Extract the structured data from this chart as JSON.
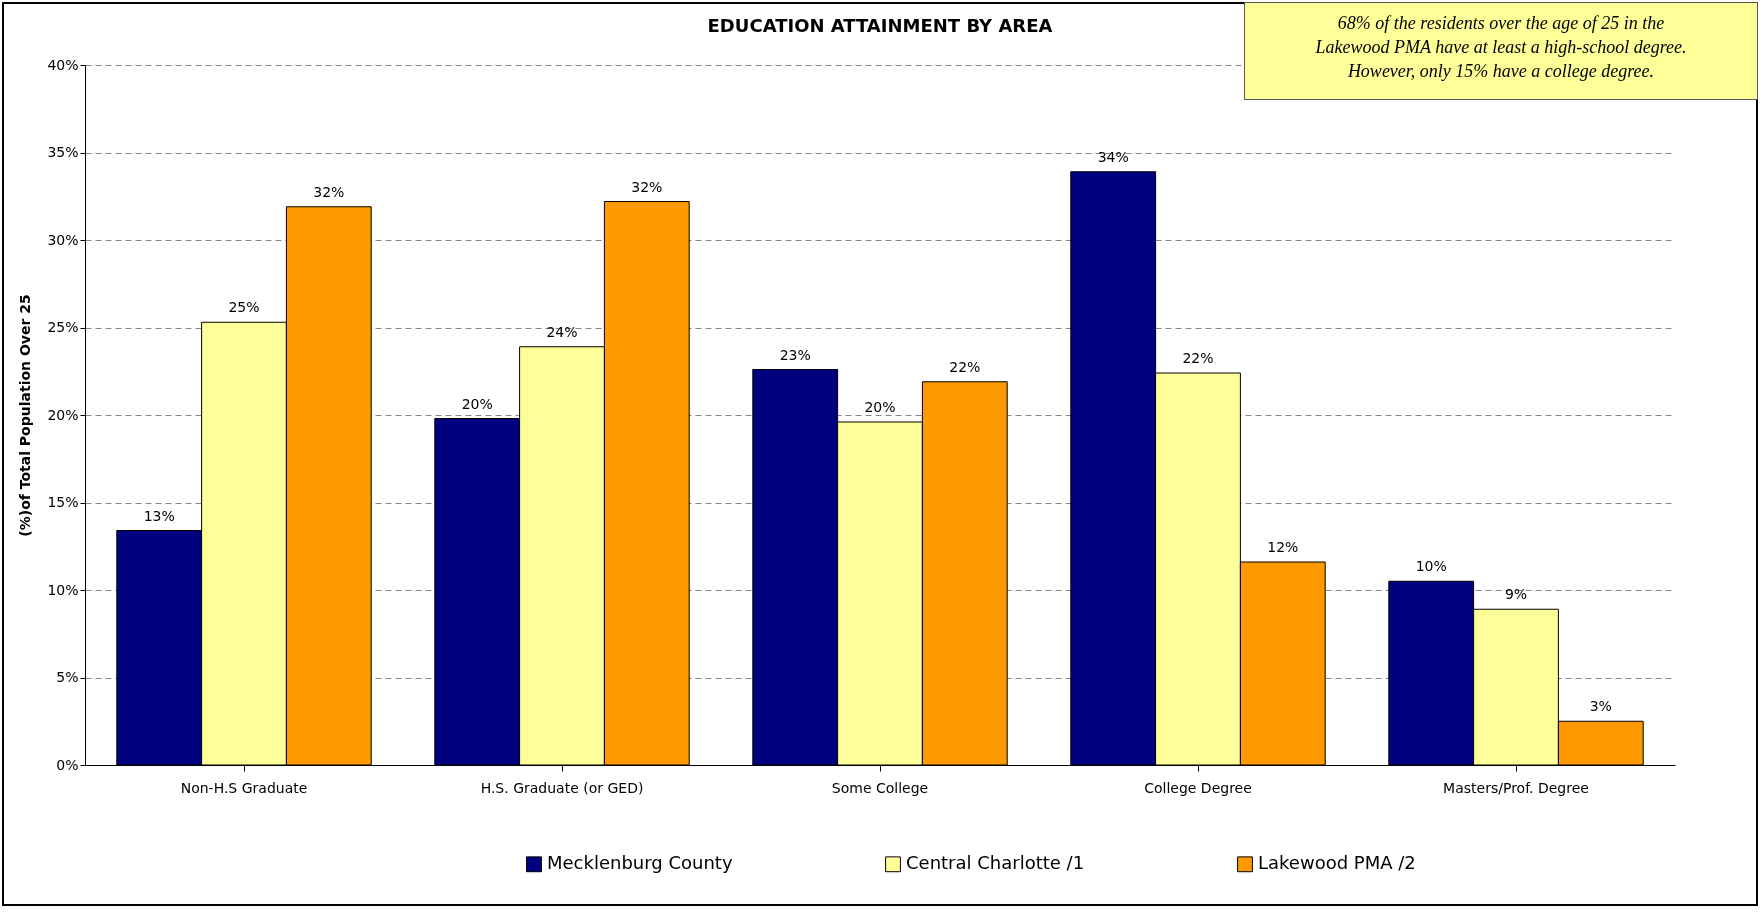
{
  "chart_data": {
    "type": "bar",
    "title": "EDUCATION ATTAINMENT BY AREA",
    "ylabel": "(%)of Total Population Over 25",
    "annotations": [
      "68% of the residents over the age of 25 in the\nLakewood PMA have at least a high-school degree.\nHowever, only 15% have a college degree."
    ],
    "categories": [
      "Non-H.S Graduate",
      "H.S. Graduate (or GED)",
      "Some College",
      "College Degree",
      "Masters/Prof. Degree"
    ],
    "series": [
      {
        "name": "Mecklenburg County",
        "color": "#000080",
        "values": [
          13.4,
          19.8,
          22.6,
          33.9,
          10.5
        ],
        "value_labels": [
          "13%",
          "20%",
          "23%",
          "34%",
          "10%"
        ]
      },
      {
        "name": "Central Charlotte /1",
        "color": "#ffff99",
        "values": [
          25.3,
          23.9,
          19.6,
          22.4,
          8.9
        ],
        "value_labels": [
          "25%",
          "24%",
          "20%",
          "22%",
          "9%"
        ]
      },
      {
        "name": "Lakewood PMA /2",
        "color": "#ff9900",
        "values": [
          31.9,
          32.2,
          21.9,
          11.6,
          2.5
        ],
        "value_labels": [
          "32%",
          "32%",
          "22%",
          "12%",
          "3%"
        ]
      }
    ],
    "ylim": [
      0,
      40
    ],
    "yticks": [
      {
        "value": 0,
        "label": "0%"
      },
      {
        "value": 5,
        "label": "5%"
      },
      {
        "value": 10,
        "label": "10%"
      },
      {
        "value": 15,
        "label": "15%"
      },
      {
        "value": 20,
        "label": "20%"
      },
      {
        "value": 25,
        "label": "25%"
      },
      {
        "value": 30,
        "label": "30%"
      },
      {
        "value": 35,
        "label": "35%"
      },
      {
        "value": 40,
        "label": "40%"
      }
    ],
    "grid": "y",
    "legend": "bottom"
  }
}
